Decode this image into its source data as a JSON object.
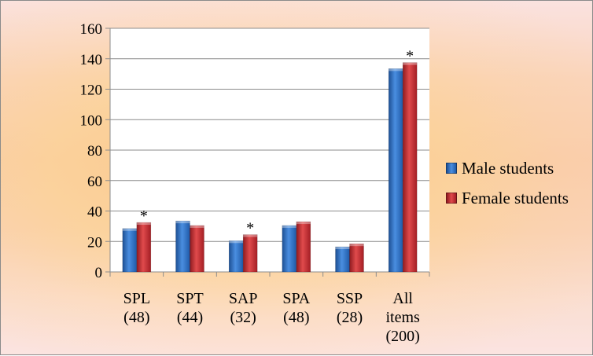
{
  "chart_data": {
    "type": "bar",
    "title": "",
    "xlabel": "",
    "ylabel": "",
    "ylim": [
      0,
      160
    ],
    "yticks": [
      0,
      20,
      40,
      60,
      80,
      100,
      120,
      140,
      160
    ],
    "grid": true,
    "legend_position": "right",
    "categories": [
      [
        "SPL",
        "(48)"
      ],
      [
        "SPT",
        "(44)"
      ],
      [
        "SAP",
        "(32)"
      ],
      [
        "SPA",
        "(48)"
      ],
      [
        "SSP",
        "(28)"
      ],
      [
        "All",
        "items",
        "(200)"
      ]
    ],
    "series": [
      {
        "name": "Male students",
        "color": "#2e6fbd",
        "values": [
          28.5,
          33.5,
          20.5,
          30.5,
          16.5,
          133.5
        ]
      },
      {
        "name": "Female students",
        "color": "#c0262b",
        "values": [
          32.5,
          30.5,
          24.5,
          33,
          18.5,
          137.5
        ]
      }
    ],
    "annotations": [
      {
        "category_index": 0,
        "series_index": 1,
        "text": "*"
      },
      {
        "category_index": 2,
        "series_index": 1,
        "text": "*"
      },
      {
        "category_index": 5,
        "series_index": 1,
        "text": "*"
      }
    ]
  }
}
